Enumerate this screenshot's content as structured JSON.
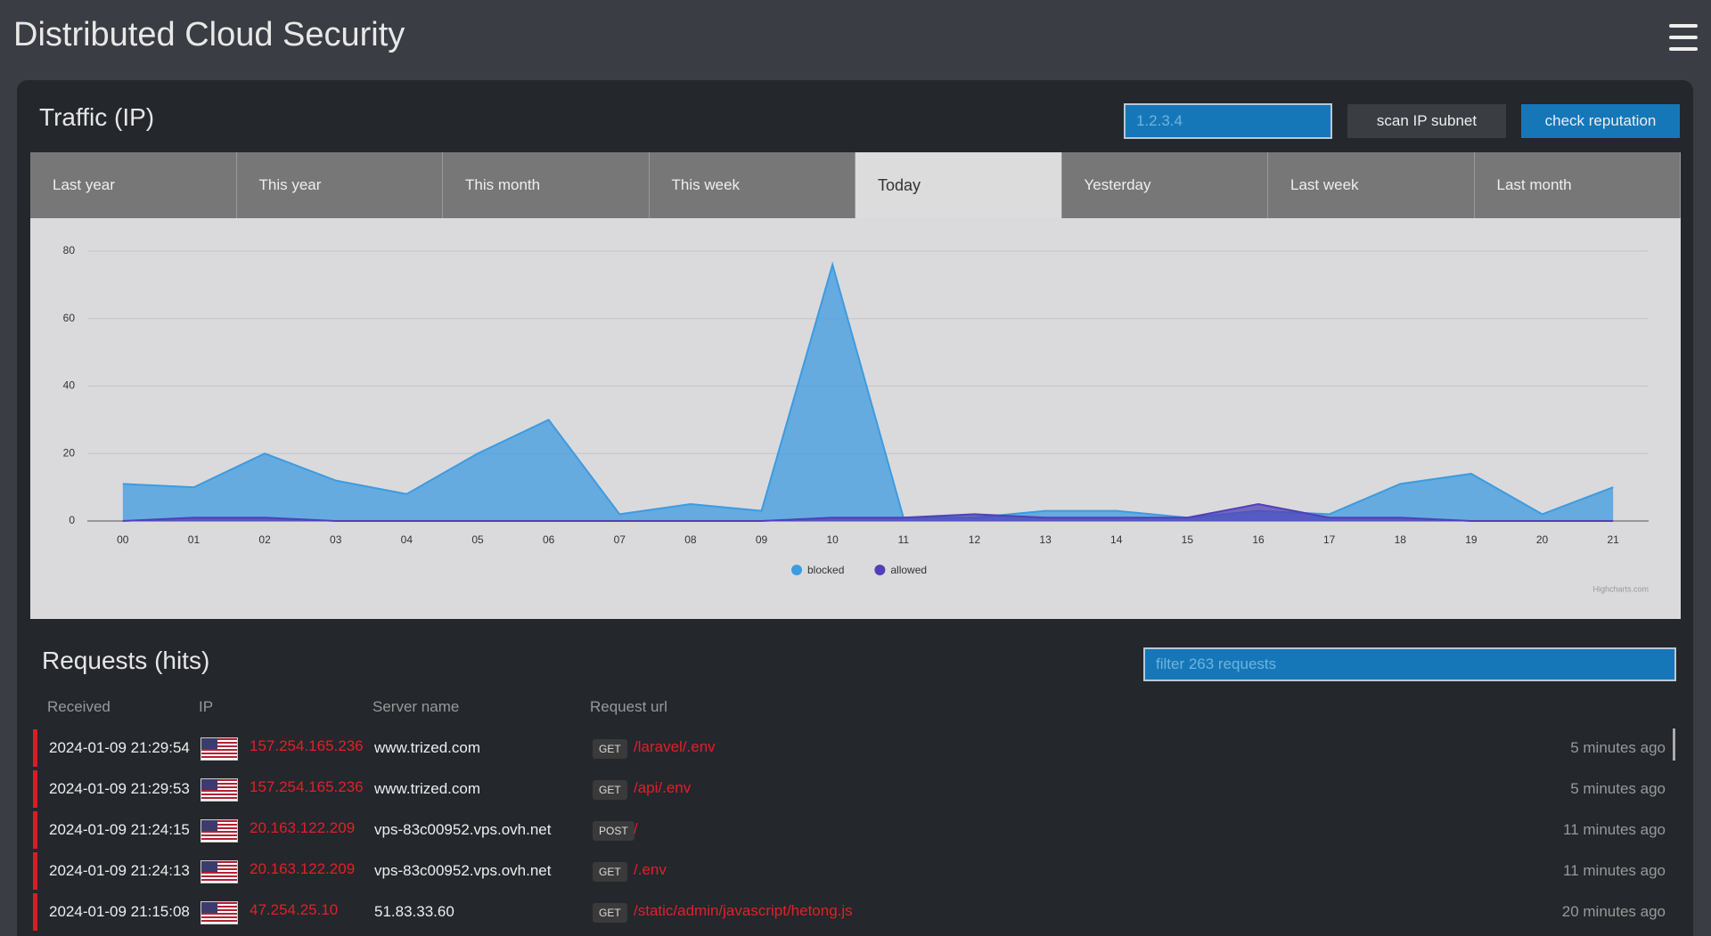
{
  "header": {
    "title": "Distributed Cloud Security"
  },
  "traffic": {
    "title": "Traffic (IP)",
    "ip_placeholder": "1.2.3.4",
    "buttons": [
      "scan IP subnet",
      "check reputation"
    ],
    "tabs": [
      {
        "label": "Last year"
      },
      {
        "label": "This year"
      },
      {
        "label": "This month"
      },
      {
        "label": "This week"
      },
      {
        "label": "Today",
        "active": true
      },
      {
        "label": "Yesterday"
      },
      {
        "label": "Last week"
      },
      {
        "label": "Last month"
      }
    ]
  },
  "chart_data": {
    "type": "area",
    "categories": [
      "00",
      "01",
      "02",
      "03",
      "04",
      "05",
      "06",
      "07",
      "08",
      "09",
      "10",
      "11",
      "12",
      "13",
      "14",
      "15",
      "16",
      "17",
      "18",
      "19",
      "20",
      "21"
    ],
    "series": [
      {
        "name": "blocked",
        "color": "#3d9be0",
        "values": [
          11,
          10,
          20,
          12,
          8,
          20,
          30,
          2,
          5,
          3,
          76,
          1,
          1,
          3,
          3,
          1,
          3,
          2,
          11,
          14,
          2,
          10
        ]
      },
      {
        "name": "allowed",
        "color": "#5040b8",
        "values": [
          0,
          1,
          1,
          0,
          0,
          0,
          0,
          0,
          0,
          0,
          1,
          1,
          2,
          1,
          1,
          1,
          5,
          1,
          1,
          0,
          0,
          0
        ]
      }
    ],
    "ylim": [
      0,
      80
    ],
    "yticks": [
      0,
      20,
      40,
      60,
      80
    ],
    "grid": true,
    "legend": "bottom",
    "credits": "Highcharts.com"
  },
  "requests": {
    "title": "Requests (hits)",
    "filter_placeholder": "filter 263 requests",
    "columns": [
      "Received",
      "IP",
      "Server name",
      "Request url"
    ],
    "rows": [
      [
        "2024-01-09 21:29:54",
        "157.254.165.236",
        "www.trized.com",
        "GET",
        "/laravel/.env",
        "5 minutes ago"
      ],
      [
        "2024-01-09 21:29:53",
        "157.254.165.236",
        "www.trized.com",
        "GET",
        "/api/.env",
        "5 minutes ago"
      ],
      [
        "2024-01-09 21:24:15",
        "20.163.122.209",
        "vps-83c00952.vps.ovh.net",
        "POST",
        "/",
        "11 minutes ago"
      ],
      [
        "2024-01-09 21:24:13",
        "20.163.122.209",
        "vps-83c00952.vps.ovh.net",
        "GET",
        "/.env",
        "11 minutes ago"
      ],
      [
        "2024-01-09 21:15:08",
        "47.254.25.10",
        "51.83.33.60",
        "GET",
        "/static/admin/javascript/hetong.js",
        "20 minutes ago"
      ]
    ]
  }
}
